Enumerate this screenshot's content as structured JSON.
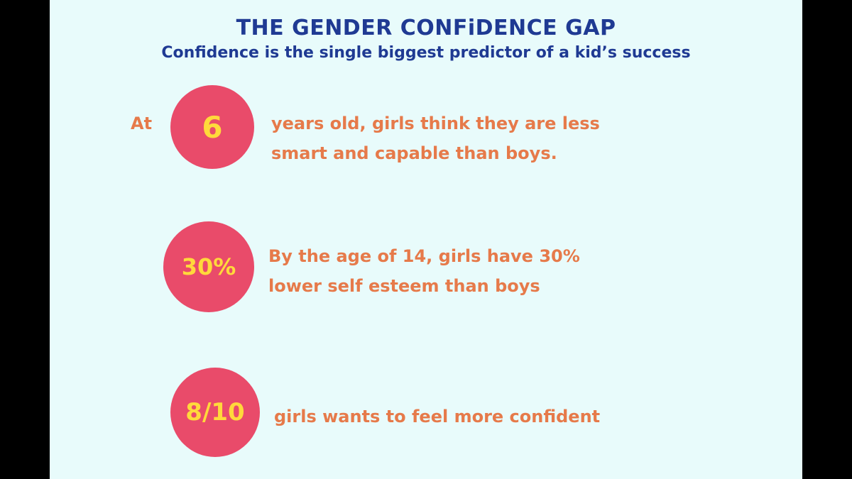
{
  "header": {
    "title": "THE GENDER CONFiDENCE GAP",
    "subtitle": "Confidence is the single biggest predictor of a kid’s success"
  },
  "stats": [
    {
      "prefix": "At",
      "value": "6",
      "lines": [
        "years old, girls think they are less",
        "smart and capable than boys."
      ]
    },
    {
      "value": "30%",
      "lines": [
        "By the age of 14, girls have 30%",
        "lower self esteem than boys"
      ]
    },
    {
      "value": "8/10",
      "lines": [
        "girls wants to feel more confident"
      ]
    }
  ],
  "colors": {
    "background": "#e8fbfb",
    "title": "#1f3a93",
    "circle": "#e94b6a",
    "number": "#ffd93b",
    "text": "#e67a4a"
  }
}
